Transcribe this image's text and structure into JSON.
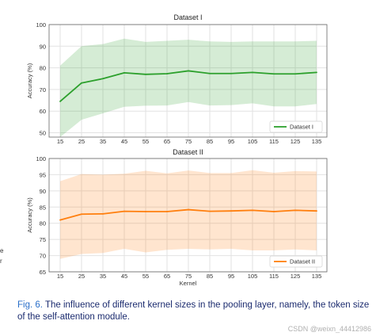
{
  "chart_data": [
    {
      "type": "line",
      "title": "Dataset I",
      "xlabel": "",
      "ylabel": "Accuracy (%)",
      "x": [
        15,
        25,
        35,
        45,
        55,
        65,
        75,
        85,
        95,
        105,
        115,
        125,
        135
      ],
      "xticks": [
        "15",
        "25",
        "35",
        "45",
        "55",
        "65",
        "75",
        "85",
        "95",
        "105",
        "115",
        "125",
        "135"
      ],
      "ylim": [
        48,
        100
      ],
      "yticks": [
        "50",
        "60",
        "70",
        "80",
        "90",
        "100"
      ],
      "grid": true,
      "legend_position": "bottom-right",
      "series": [
        {
          "name": "Dataset I",
          "color": "#2ca02c",
          "values": [
            64.5,
            73,
            75,
            77.7,
            77,
            77.3,
            78.6,
            77.4,
            77.4,
            77.9,
            77.2,
            77.2,
            77.9
          ],
          "upper": [
            81,
            90,
            91,
            93.5,
            92,
            92.5,
            93,
            92.2,
            92,
            92.2,
            92.2,
            92.2,
            92.5
          ],
          "lower": [
            48,
            56,
            59,
            62,
            62.5,
            62.6,
            64.2,
            62.6,
            62.8,
            63.6,
            62.2,
            62.2,
            63.3
          ]
        }
      ]
    },
    {
      "type": "line",
      "title": "Dataset II",
      "xlabel": "Kernel",
      "ylabel": "Accuracy (%)",
      "x": [
        15,
        25,
        35,
        45,
        55,
        65,
        75,
        85,
        95,
        105,
        115,
        125,
        135
      ],
      "xticks": [
        "15",
        "25",
        "35",
        "45",
        "55",
        "65",
        "75",
        "85",
        "95",
        "105",
        "115",
        "125",
        "135"
      ],
      "ylim": [
        65,
        100
      ],
      "yticks": [
        "65",
        "70",
        "75",
        "80",
        "85",
        "90",
        "95",
        "100"
      ],
      "grid": true,
      "legend_position": "bottom-right",
      "series": [
        {
          "name": "Dataset II",
          "color": "#ff7f0e",
          "values": [
            81,
            82.8,
            82.9,
            83.7,
            83.6,
            83.6,
            84.2,
            83.7,
            83.8,
            84,
            83.6,
            84,
            83.8
          ],
          "upper": [
            93,
            95.2,
            95,
            95.3,
            96.2,
            95.4,
            96.3,
            95.5,
            95.5,
            96.4,
            95.6,
            96.1,
            96
          ],
          "lower": [
            69,
            70.5,
            70.8,
            72.1,
            71,
            71.8,
            72.1,
            71.9,
            72.1,
            71.6,
            71.6,
            71.9,
            71.6
          ]
        }
      ]
    }
  ],
  "side_text": [
    "e",
    "r"
  ],
  "caption": {
    "fig_label": "Fig. 6.",
    "text": "The influence of different kernel sizes in the pooling layer, namely, the token size of the self-attention module."
  },
  "watermark": "CSDN @weixn_44412986"
}
